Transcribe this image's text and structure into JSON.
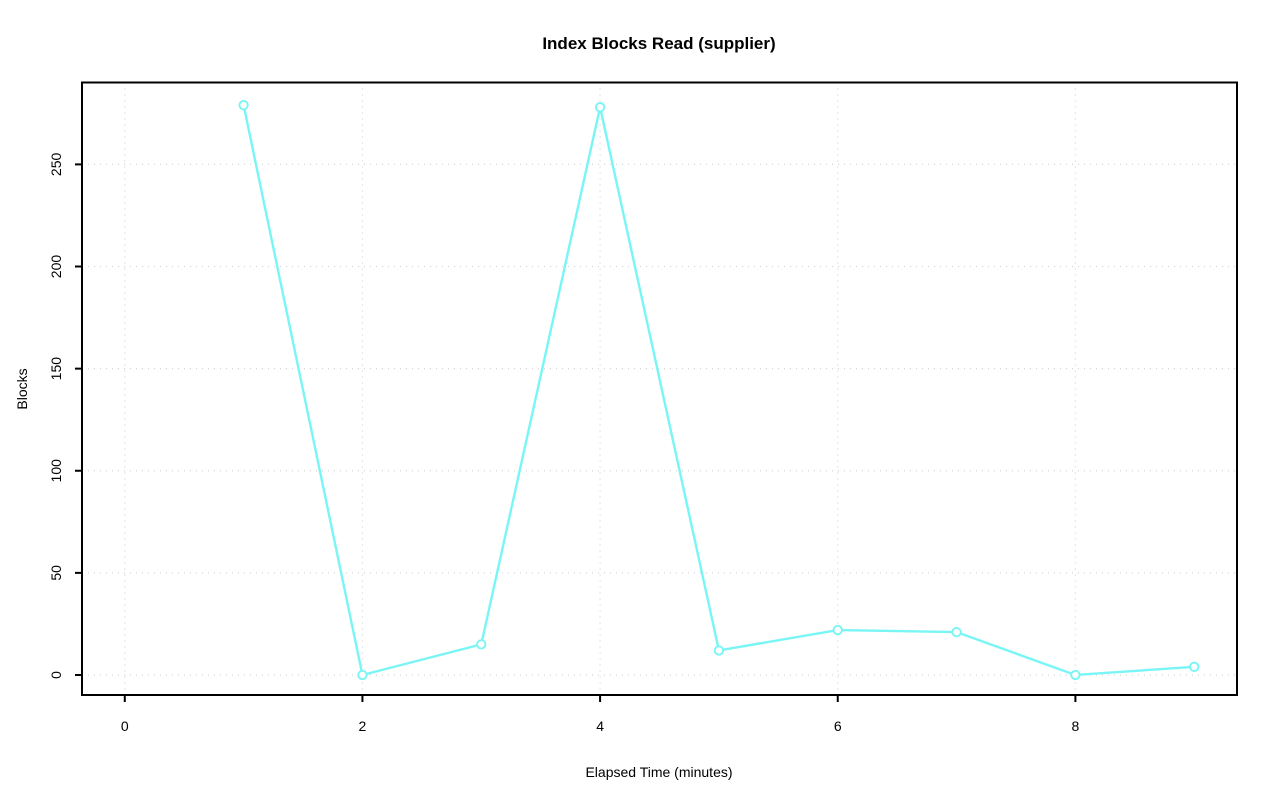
{
  "figure": {
    "title": "Index Blocks Read (supplier)",
    "xlabel": "Elapsed Time (minutes)",
    "ylabel": "Blocks"
  },
  "chart_data": {
    "type": "line",
    "title": "Index Blocks Read (supplier)",
    "xlabel": "Elapsed Time (minutes)",
    "ylabel": "Blocks",
    "x": [
      1,
      2,
      3,
      4,
      5,
      6,
      7,
      8,
      9
    ],
    "values": [
      279,
      0,
      15,
      278,
      12,
      22,
      21,
      0,
      4
    ],
    "series_name": "Blocks",
    "x_ticks": [
      0,
      2,
      4,
      6,
      8
    ],
    "y_ticks": [
      0,
      50,
      100,
      150,
      200,
      250
    ],
    "xlim": [
      0,
      9
    ],
    "ylim": [
      0,
      279
    ],
    "x_range": [
      -0.36,
      9.36
    ],
    "y_range": [
      -9.8,
      290.1
    ],
    "grid": true,
    "grid_style": "dotted",
    "legend": "none",
    "marker": "open-circle",
    "line_style": "solid",
    "colors": {
      "line": "#7AF5F5",
      "marker": "#7AF5F5",
      "grid": "#D4D4D4",
      "axis": "#000000",
      "text": "#000000",
      "background": "#FFFFFF"
    }
  }
}
